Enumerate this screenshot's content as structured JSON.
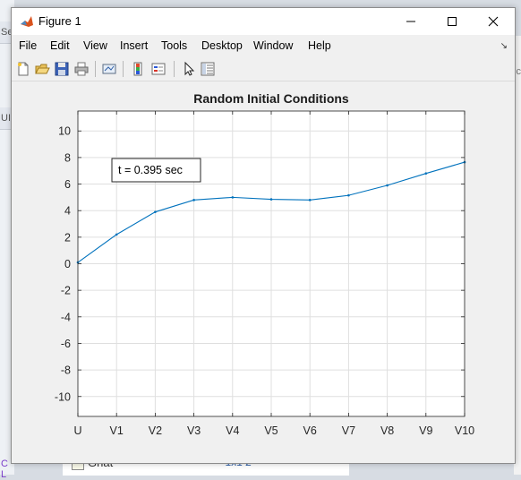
{
  "window": {
    "title": "Figure 1",
    "app_icon": "matlab-icon"
  },
  "window_controls": [
    "minimize-icon",
    "maximize-icon",
    "close-icon"
  ],
  "menu": [
    "File",
    "Edit",
    "View",
    "Insert",
    "Tools",
    "Desktop",
    "Window",
    "Help"
  ],
  "toolbar": [
    "new-figure-icon",
    "open-file-icon",
    "save-icon",
    "print-icon",
    "link-plot-icon",
    "insert-colorbar-icon",
    "insert-legend-icon",
    "edit-plot-arrow-icon",
    "property-inspector-icon"
  ],
  "background": {
    "left_fragments": [
      "Se",
      "UI",
      "C L"
    ],
    "right_fragments": [
      "Dc"
    ],
    "workspace_row": {
      "name": "Gnat",
      "value": "1x1 2"
    }
  },
  "annotation": {
    "text": "t = 0.395 sec"
  },
  "chart_data": {
    "type": "line",
    "title": "Random Initial Conditions",
    "categories": [
      "U",
      "V1",
      "V2",
      "V3",
      "V4",
      "V5",
      "V6",
      "V7",
      "V8",
      "V9",
      "V10"
    ],
    "series": [
      {
        "values": [
          0.1,
          2.2,
          3.9,
          4.8,
          5.0,
          4.85,
          4.8,
          5.15,
          5.9,
          6.8,
          7.65
        ]
      }
    ],
    "ylim": [
      -11.5,
      11.5
    ],
    "yticks": [
      -10,
      -8,
      -6,
      -4,
      -2,
      0,
      2,
      4,
      6,
      8,
      10
    ],
    "grid": true,
    "colors": {
      "line": "#0072bd",
      "grid": "#dfdfdf",
      "axes_bg": "#ffffff",
      "figure_bg": "#f0f0f0"
    }
  }
}
